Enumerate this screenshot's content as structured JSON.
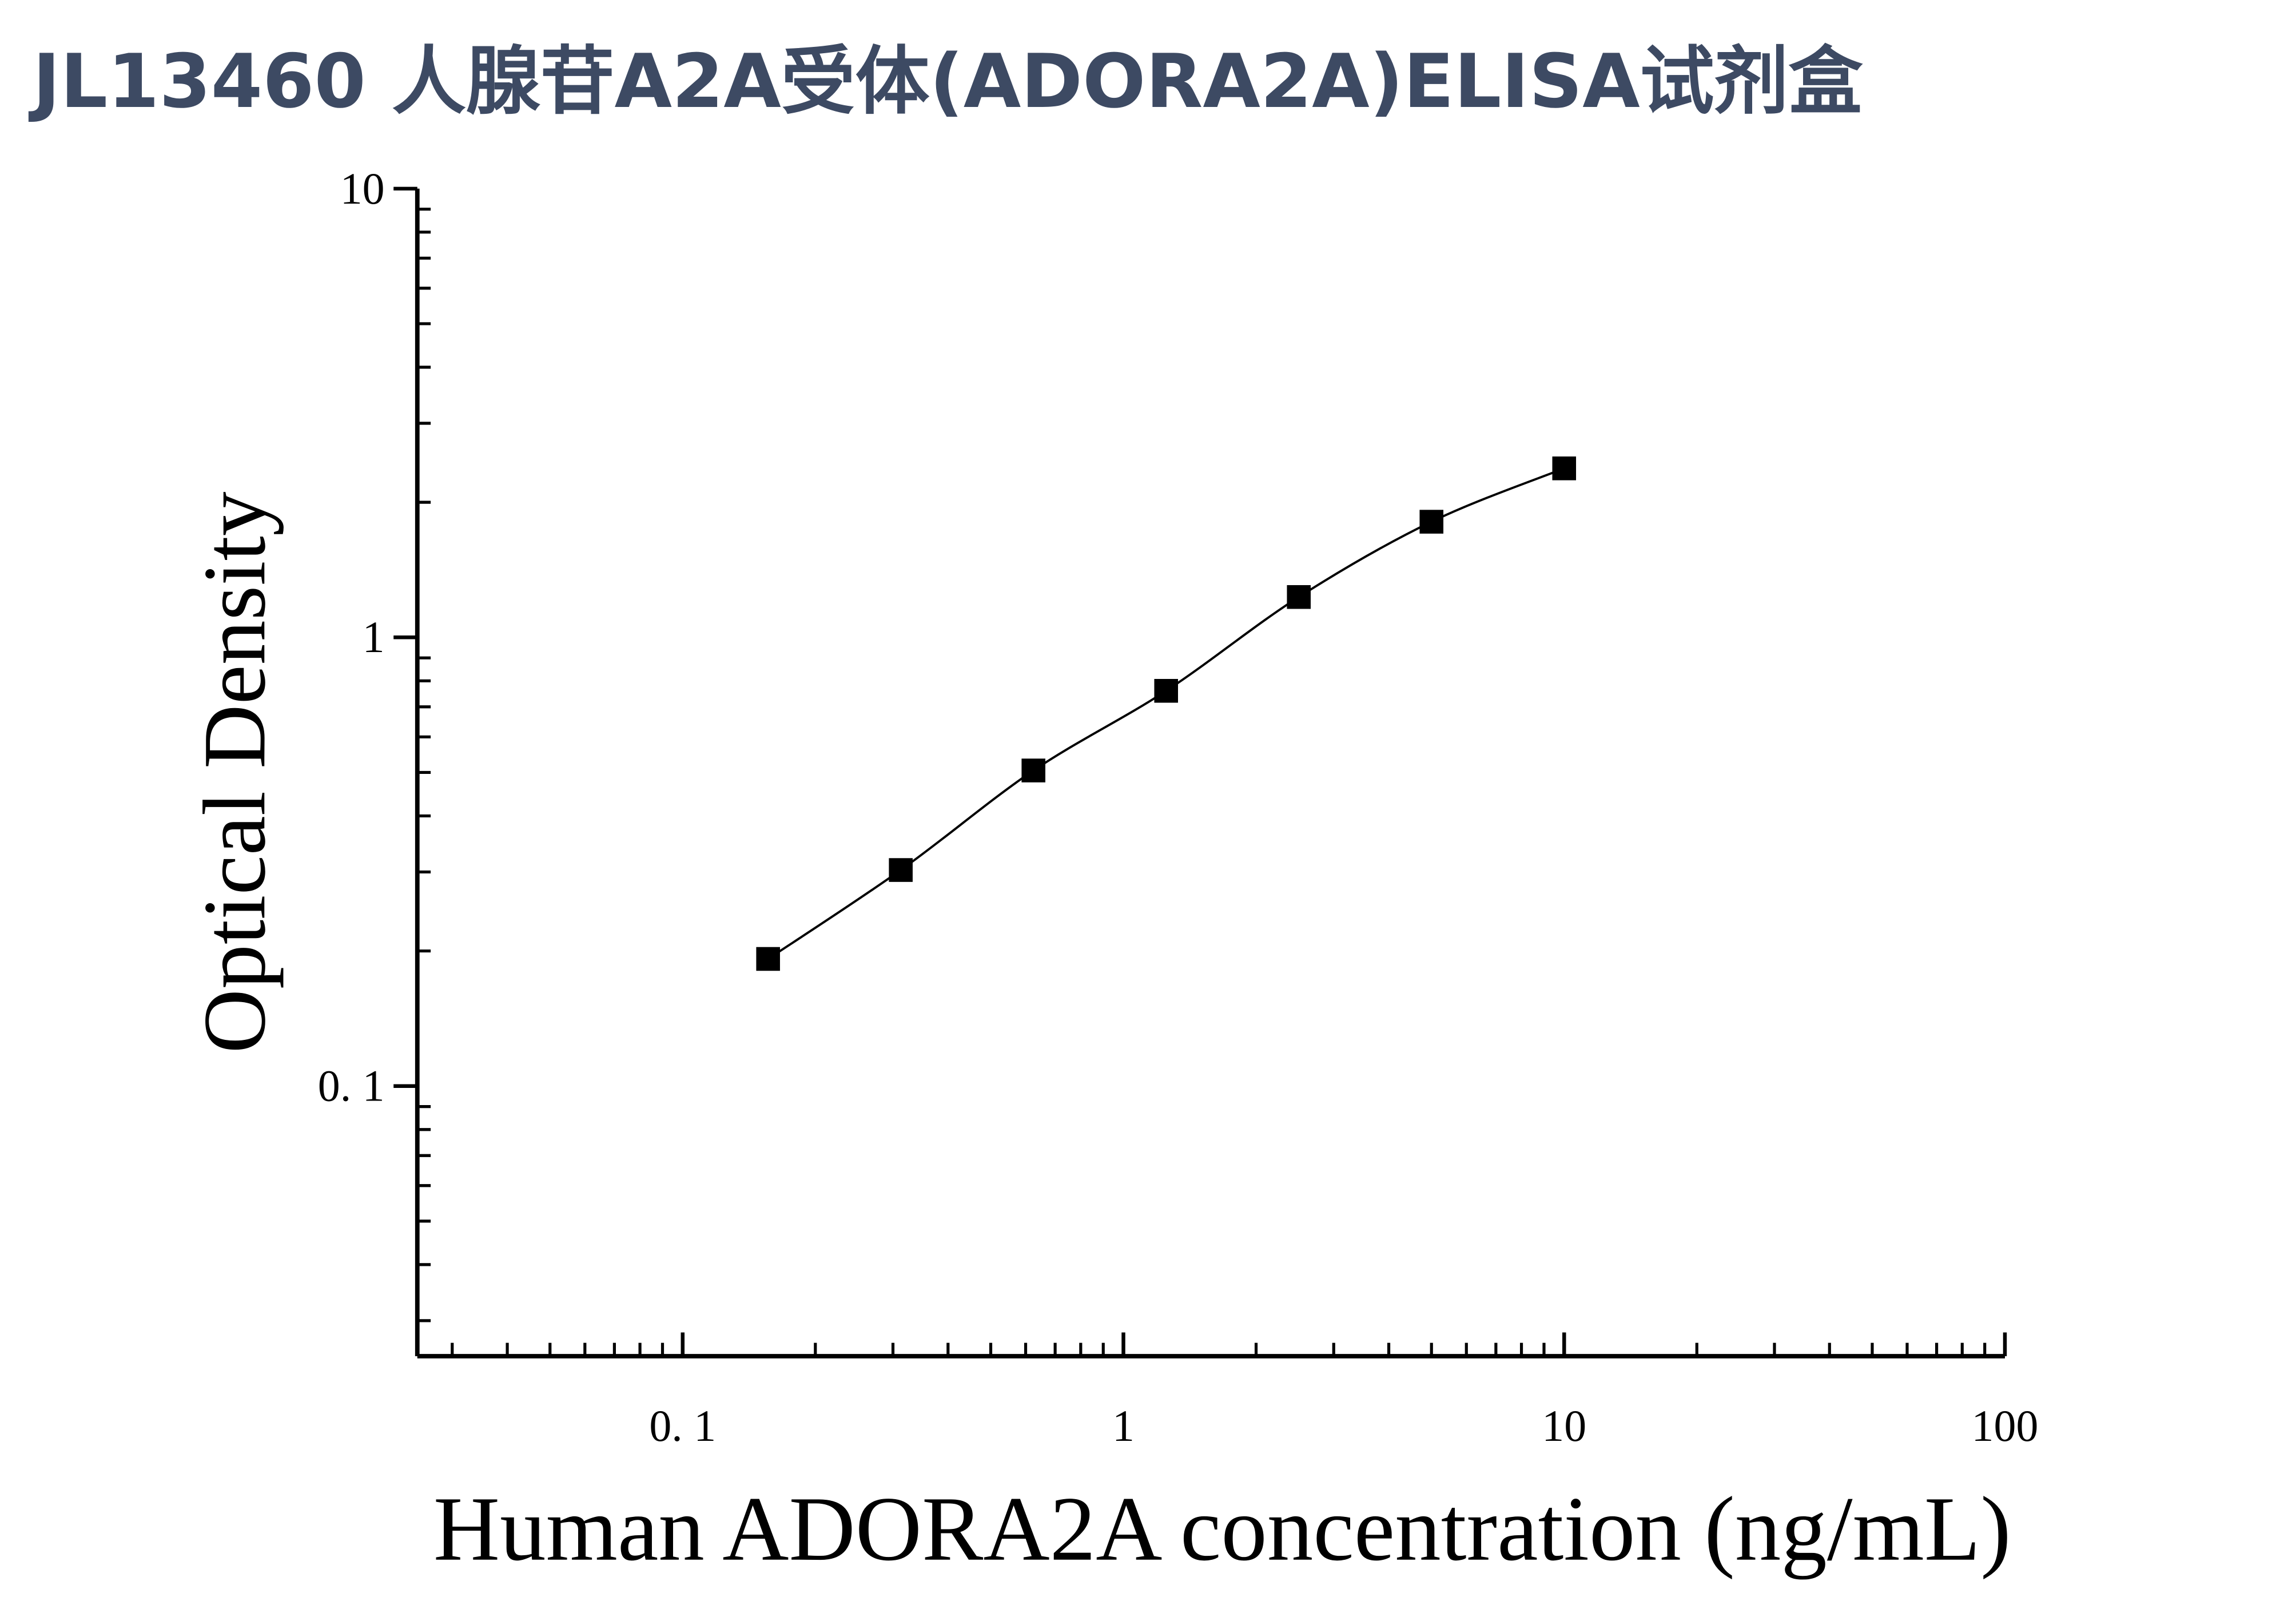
{
  "chart_data": {
    "type": "scatter",
    "title": "JL13460 人腺苷A2A受体(ADORA2A)ELISA试剂盒",
    "x_label": "Human ADORA2A concentration (ng/mL)",
    "y_label": "Optical Density",
    "x_log": true,
    "y_log": true,
    "xlim": [
      0.025,
      100
    ],
    "ylim": [
      0.025,
      10
    ],
    "xticks": [
      {
        "value": 0.1,
        "label": "0. 1"
      },
      1,
      10,
      100
    ],
    "yticks": [
      {
        "value": 0.1,
        "label": "0. 1"
      },
      1,
      10
    ],
    "series": [
      {
        "color": "#000000",
        "x": [
          0.15625,
          0.3125,
          0.625,
          1.25,
          2.5,
          5,
          10
        ],
        "values": [
          0.192,
          0.303,
          0.505,
          0.76,
          1.23,
          1.81,
          2.38
        ]
      }
    ]
  }
}
